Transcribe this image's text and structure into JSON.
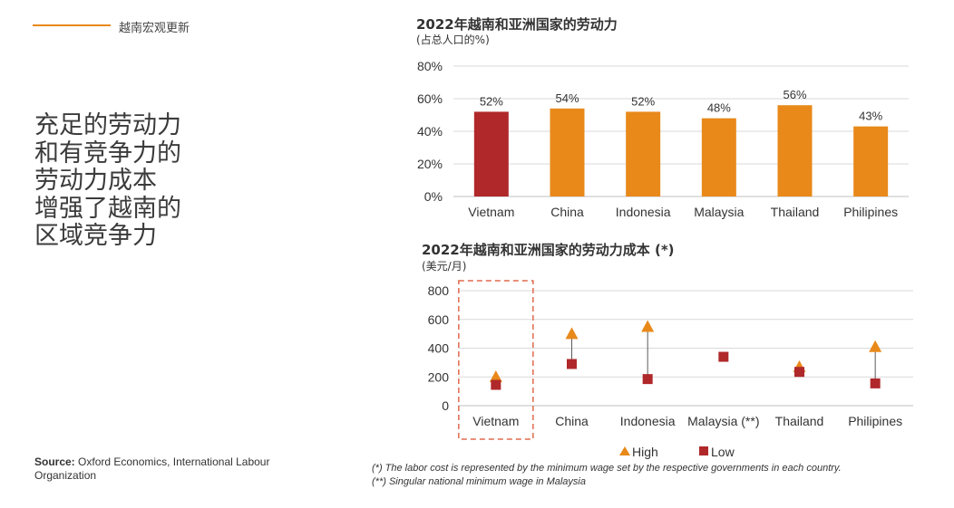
{
  "header": {
    "section_label": "越南宏观更新"
  },
  "headline": {
    "lines": [
      "充足的劳动力",
      "和有竞争力的",
      "劳动力成本",
      "增强了越南的",
      "区域竞争力"
    ]
  },
  "source": {
    "label": "Source:",
    "text": "Oxford Economics, International Labour Organization"
  },
  "footnotes": [
    "(*) The labor cost is represented by the minimum wage set by the respective governments in each country.",
    "(**) Singular national minimum wage in Malaysia"
  ],
  "colors": {
    "accent": "#E8891A",
    "highlight": "#B0282A",
    "grid": "#D9D9D9",
    "connector": "#5A5A5A"
  },
  "chart_data": [
    {
      "type": "bar",
      "title": "2022年越南和亚洲国家的劳动力",
      "subtitle": "(占总人口的%)",
      "categories": [
        "Vietnam",
        "China",
        "Indonesia",
        "Malaysia",
        "Thailand",
        "Philipines"
      ],
      "values": [
        52,
        54,
        52,
        48,
        56,
        43
      ],
      "data_labels": [
        "52%",
        "54%",
        "52%",
        "48%",
        "56%",
        "43%"
      ],
      "highlight_index": 0,
      "ylim": [
        0,
        80
      ],
      "yticks": [
        0,
        20,
        40,
        60,
        80
      ],
      "ytick_labels": [
        "0%",
        "20%",
        "40%",
        "60%",
        "80%"
      ],
      "grid": true
    },
    {
      "type": "scatter",
      "title": "2022年越南和亚洲国家的劳动力成本 (*)",
      "subtitle": "(美元/月)",
      "categories": [
        "Vietnam",
        "China",
        "Indonesia",
        "Malaysia (**)",
        "Thailand",
        "Philipines"
      ],
      "series": [
        {
          "name": "High",
          "values": [
            195,
            495,
            545,
            null,
            265,
            405
          ],
          "marker": "triangle"
        },
        {
          "name": "Low",
          "values": [
            145,
            290,
            185,
            340,
            235,
            155
          ],
          "marker": "square"
        }
      ],
      "ylim": [
        0,
        800
      ],
      "yticks": [
        0,
        200,
        400,
        600,
        800
      ],
      "ytick_labels": [
        "0",
        "200",
        "400",
        "600",
        "800"
      ],
      "highlight_category_index": 0,
      "grid": true,
      "legend": "bottom"
    }
  ]
}
